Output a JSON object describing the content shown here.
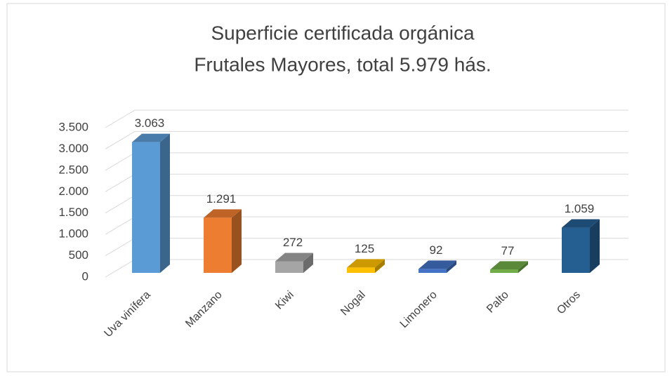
{
  "chart_data": {
    "type": "bar3d",
    "title": "Superficie certificada orgánica",
    "subtitle": "Frutales Mayores, total 5.979 hás.",
    "categories": [
      "Uva vinífera",
      "Manzano",
      "Kiwi",
      "Nogal",
      "Limonero",
      "Palto",
      "Otros"
    ],
    "values": [
      3063,
      1291,
      272,
      125,
      92,
      77,
      1059
    ],
    "value_labels": [
      "3.063",
      "1.291",
      "272",
      "125",
      "92",
      "77",
      "1.059"
    ],
    "colors": [
      "#5b9bd5",
      "#ed7d31",
      "#a5a5a5",
      "#ffc000",
      "#4472c4",
      "#70ad47",
      "#255e91"
    ],
    "ylim": [
      0,
      3500
    ],
    "yticks": [
      0,
      500,
      {
        "value": 1000,
        "label": "1.000"
      },
      {
        "value": 1500,
        "label": "1.500"
      },
      {
        "value": 2000,
        "label": "2.000"
      },
      {
        "value": 2500,
        "label": "2.500"
      },
      {
        "value": 3000,
        "label": "3.000"
      },
      {
        "value": 3500,
        "label": "3.500"
      }
    ],
    "grid": true
  }
}
